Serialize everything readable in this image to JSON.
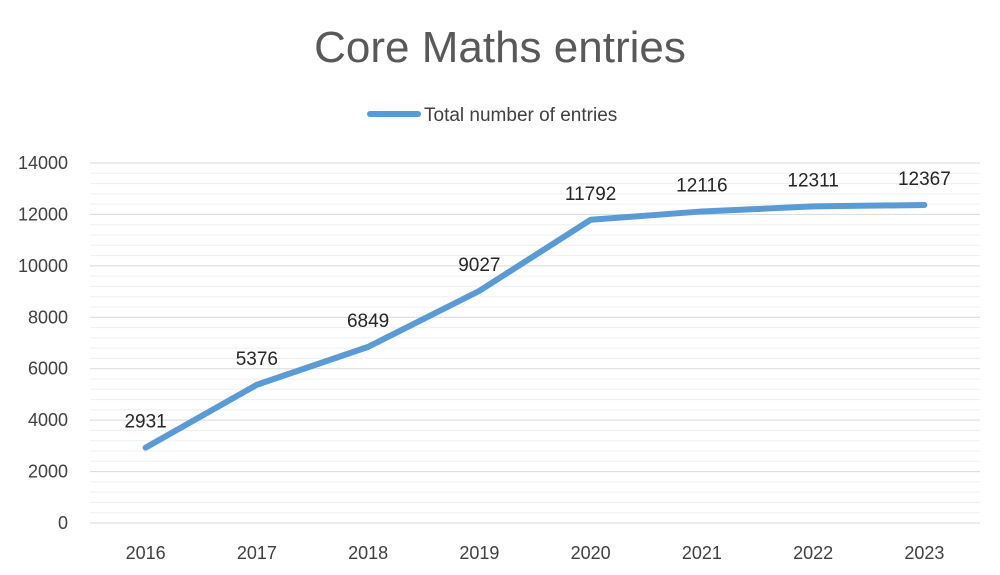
{
  "chart_data": {
    "type": "line",
    "title": "Core Maths entries",
    "categories": [
      "2016",
      "2017",
      "2018",
      "2019",
      "2020",
      "2021",
      "2022",
      "2023"
    ],
    "series": [
      {
        "name": "Total number of entries",
        "values": [
          2931,
          5376,
          6849,
          9027,
          11792,
          12116,
          12311,
          12367
        ]
      }
    ],
    "ylim": [
      0,
      14000
    ],
    "yticks": [
      0,
      2000,
      4000,
      6000,
      8000,
      10000,
      12000,
      14000
    ],
    "y_minor_step": 400,
    "data_labels": true,
    "grid": true,
    "legend_position": "top",
    "colors": {
      "series": "#5b9bd5",
      "title": "#595959",
      "text": "#404040",
      "grid": "#d9d9d9"
    }
  }
}
